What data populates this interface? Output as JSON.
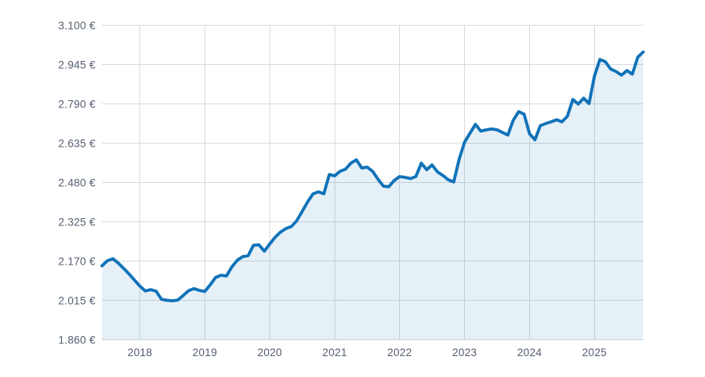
{
  "page": {
    "background": "#ffffff"
  },
  "chart_data": {
    "type": "area",
    "title": "",
    "xlabel": "",
    "ylabel": "",
    "unit": "EUR",
    "axes": {
      "y_min": 1860,
      "y_max": 3100,
      "y_tick_step": 155,
      "grid": true,
      "legend": false,
      "x_range_months": [
        "2017-06",
        "2025-10"
      ]
    },
    "y_ticks": [
      {
        "label": "3.100 €",
        "value": 3100
      },
      {
        "label": "2.945 €",
        "value": 2945
      },
      {
        "label": "2.790 €",
        "value": 2790
      },
      {
        "label": "2.635 €",
        "value": 2635
      },
      {
        "label": "2.480 €",
        "value": 2480
      },
      {
        "label": "2.325 €",
        "value": 2325
      },
      {
        "label": "2.170 €",
        "value": 2170
      },
      {
        "label": "2.015 €",
        "value": 2015
      },
      {
        "label": "1.860 €",
        "value": 1860
      }
    ],
    "x_ticks": [
      {
        "label": "2018",
        "month_index": 7
      },
      {
        "label": "2019",
        "month_index": 19
      },
      {
        "label": "2020",
        "month_index": 31
      },
      {
        "label": "2021",
        "month_index": 43
      },
      {
        "label": "2022",
        "month_index": 55
      },
      {
        "label": "2023",
        "month_index": 67
      },
      {
        "label": "2024",
        "month_index": 79
      },
      {
        "label": "2025",
        "month_index": 91
      }
    ],
    "series": [
      {
        "name": "price-eur",
        "start_month": "2017-06",
        "monthly_values": [
          2152,
          2172,
          2180,
          2163,
          2142,
          2120,
          2096,
          2072,
          2053,
          2058,
          2052,
          2020,
          2016,
          2014,
          2017,
          2035,
          2054,
          2062,
          2055,
          2051,
          2077,
          2106,
          2115,
          2112,
          2148,
          2174,
          2188,
          2192,
          2233,
          2235,
          2210,
          2238,
          2265,
          2285,
          2299,
          2307,
          2330,
          2367,
          2404,
          2436,
          2444,
          2436,
          2512,
          2507,
          2525,
          2533,
          2557,
          2570,
          2538,
          2541,
          2525,
          2494,
          2466,
          2464,
          2489,
          2504,
          2501,
          2496,
          2504,
          2557,
          2531,
          2550,
          2522,
          2508,
          2491,
          2483,
          2572,
          2640,
          2675,
          2710,
          2683,
          2688,
          2692,
          2688,
          2678,
          2668,
          2726,
          2760,
          2750,
          2673,
          2649,
          2705,
          2713,
          2720,
          2728,
          2720,
          2742,
          2808,
          2790,
          2813,
          2792,
          2900,
          2966,
          2957,
          2928,
          2918,
          2904,
          2922,
          2908,
          2975,
          2995
        ]
      }
    ],
    "style": {
      "line_color": "#1072b9",
      "fill_color": "#1072b9",
      "fill_opacity": 0.11,
      "grid_color": "#d7dade",
      "label_color": "#556070",
      "background": "#ffffff"
    }
  }
}
